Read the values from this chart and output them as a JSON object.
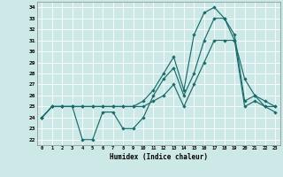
{
  "xlabel": "Humidex (Indice chaleur)",
  "xlim": [
    -0.5,
    23.5
  ],
  "ylim": [
    21.5,
    34.5
  ],
  "xticks": [
    0,
    1,
    2,
    3,
    4,
    5,
    6,
    7,
    8,
    9,
    10,
    11,
    12,
    13,
    14,
    15,
    16,
    17,
    18,
    19,
    20,
    21,
    22,
    23
  ],
  "yticks": [
    22,
    23,
    24,
    25,
    26,
    27,
    28,
    29,
    30,
    31,
    32,
    33,
    34
  ],
  "bg_color": "#cce9e8",
  "line_color": "#1a6b6b",
  "grid_color": "#b0d8d6",
  "line1": [
    24,
    25,
    25,
    25,
    22,
    22,
    24.5,
    24.5,
    23,
    23,
    24,
    26,
    27.5,
    28.5,
    26,
    28,
    31,
    33,
    33,
    31,
    27.5,
    26,
    25.5,
    25
  ],
  "line2": [
    24,
    25,
    25,
    25,
    25,
    25,
    25,
    25,
    25,
    25,
    25.5,
    26.5,
    28,
    29.5,
    26.5,
    31.5,
    33.5,
    34,
    33,
    31.5,
    25.5,
    26,
    25,
    24.5
  ],
  "line3": [
    24,
    25,
    25,
    25,
    25,
    25,
    25,
    25,
    25,
    25,
    25,
    25.5,
    26,
    27,
    25,
    27,
    29,
    31,
    31,
    31,
    25,
    25.5,
    25,
    25
  ]
}
